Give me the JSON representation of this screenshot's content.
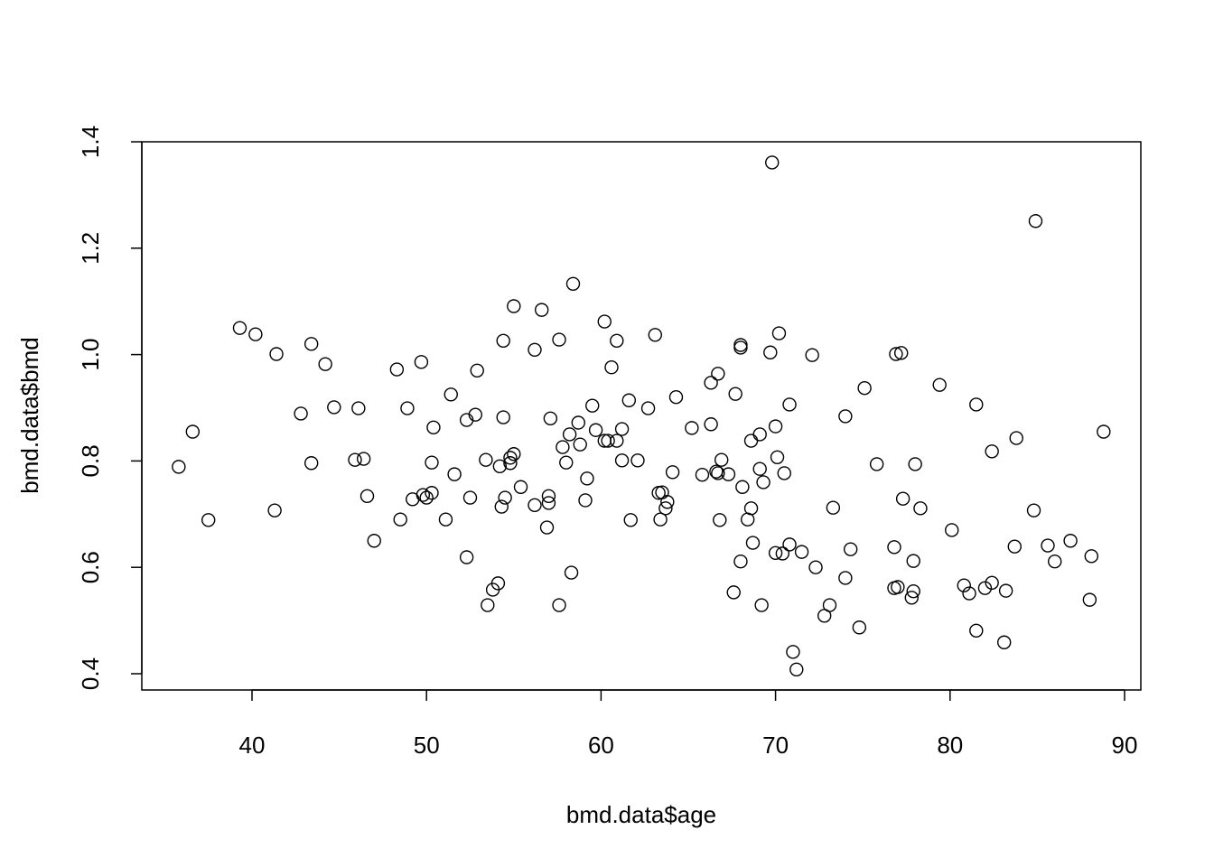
{
  "chart_data": {
    "type": "scatter",
    "title": "",
    "xlabel": "bmd.data$age",
    "ylabel": "bmd.data$bmd",
    "xlim": [
      34,
      91
    ],
    "ylim": [
      0.37,
      1.43
    ],
    "xticks": [
      "40",
      "50",
      "60",
      "70",
      "80",
      "90"
    ],
    "yticks": [
      "0.4",
      "0.6",
      "0.8",
      "1.0",
      "1.2",
      "1.4"
    ],
    "grid": false,
    "marker": "open-circle",
    "color": "#000000",
    "points": [
      [
        35.8,
        0.789
      ],
      [
        36.6,
        0.855
      ],
      [
        37.5,
        0.689
      ],
      [
        39.3,
        1.05
      ],
      [
        40.2,
        1.038
      ],
      [
        41.4,
        1.001
      ],
      [
        41.3,
        0.707
      ],
      [
        42.8,
        0.889
      ],
      [
        43.4,
        1.02
      ],
      [
        43.4,
        0.796
      ],
      [
        44.2,
        0.982
      ],
      [
        44.7,
        0.901
      ],
      [
        45.9,
        0.802
      ],
      [
        46.1,
        0.899
      ],
      [
        46.4,
        0.804
      ],
      [
        46.6,
        0.734
      ],
      [
        47.0,
        0.65
      ],
      [
        48.3,
        0.972
      ],
      [
        48.5,
        0.69
      ],
      [
        48.9,
        0.899
      ],
      [
        49.2,
        0.728
      ],
      [
        49.7,
        0.986
      ],
      [
        49.8,
        0.736
      ],
      [
        50.0,
        0.731
      ],
      [
        50.3,
        0.74
      ],
      [
        50.3,
        0.797
      ],
      [
        50.4,
        0.863
      ],
      [
        51.1,
        0.69
      ],
      [
        51.4,
        0.925
      ],
      [
        51.6,
        0.775
      ],
      [
        52.3,
        0.619
      ],
      [
        52.3,
        0.877
      ],
      [
        52.5,
        0.731
      ],
      [
        52.8,
        0.887
      ],
      [
        52.9,
        0.97
      ],
      [
        53.4,
        0.802
      ],
      [
        53.5,
        0.529
      ],
      [
        53.8,
        0.558
      ],
      [
        54.1,
        0.57
      ],
      [
        54.2,
        0.79
      ],
      [
        54.3,
        0.714
      ],
      [
        54.4,
        1.026
      ],
      [
        54.4,
        0.882
      ],
      [
        54.5,
        0.731
      ],
      [
        54.8,
        0.806
      ],
      [
        54.8,
        0.796
      ],
      [
        55.0,
        1.091
      ],
      [
        55.0,
        0.813
      ],
      [
        55.4,
        0.751
      ],
      [
        56.2,
        0.717
      ],
      [
        56.2,
        1.009
      ],
      [
        56.6,
        1.084
      ],
      [
        56.9,
        0.675
      ],
      [
        57.0,
        0.734
      ],
      [
        57.0,
        0.721
      ],
      [
        57.1,
        0.88
      ],
      [
        57.6,
        1.028
      ],
      [
        57.6,
        0.529
      ],
      [
        57.8,
        0.826
      ],
      [
        58.0,
        0.797
      ],
      [
        58.2,
        0.85
      ],
      [
        58.3,
        0.59
      ],
      [
        58.4,
        1.133
      ],
      [
        58.7,
        0.872
      ],
      [
        58.8,
        0.831
      ],
      [
        59.1,
        0.726
      ],
      [
        59.2,
        0.767
      ],
      [
        59.5,
        0.904
      ],
      [
        59.7,
        0.858
      ],
      [
        60.2,
        1.062
      ],
      [
        60.2,
        0.838
      ],
      [
        60.4,
        0.838
      ],
      [
        60.6,
        0.976
      ],
      [
        60.9,
        1.026
      ],
      [
        60.9,
        0.838
      ],
      [
        61.2,
        0.86
      ],
      [
        61.2,
        0.801
      ],
      [
        61.6,
        0.914
      ],
      [
        61.7,
        0.689
      ],
      [
        62.1,
        0.801
      ],
      [
        62.7,
        0.899
      ],
      [
        63.1,
        1.037
      ],
      [
        63.3,
        0.74
      ],
      [
        63.5,
        0.741
      ],
      [
        63.4,
        0.69
      ],
      [
        63.7,
        0.711
      ],
      [
        63.8,
        0.723
      ],
      [
        64.1,
        0.779
      ],
      [
        64.3,
        0.92
      ],
      [
        65.2,
        0.862
      ],
      [
        65.8,
        0.774
      ],
      [
        66.3,
        0.947
      ],
      [
        66.3,
        0.869
      ],
      [
        66.6,
        0.78
      ],
      [
        66.7,
        0.964
      ],
      [
        66.7,
        0.777
      ],
      [
        66.8,
        0.689
      ],
      [
        66.9,
        0.802
      ],
      [
        67.3,
        0.775
      ],
      [
        67.6,
        0.553
      ],
      [
        67.7,
        0.926
      ],
      [
        68.0,
        1.018
      ],
      [
        68.0,
        1.013
      ],
      [
        68.0,
        0.611
      ],
      [
        68.1,
        0.751
      ],
      [
        68.4,
        0.69
      ],
      [
        68.6,
        0.838
      ],
      [
        68.6,
        0.711
      ],
      [
        68.7,
        0.646
      ],
      [
        69.1,
        0.785
      ],
      [
        69.1,
        0.85
      ],
      [
        69.2,
        0.529
      ],
      [
        69.3,
        0.76
      ],
      [
        69.7,
        1.004
      ],
      [
        69.8,
        1.361
      ],
      [
        70.0,
        0.627
      ],
      [
        70.0,
        0.865
      ],
      [
        70.1,
        0.807
      ],
      [
        70.2,
        1.04
      ],
      [
        70.4,
        0.626
      ],
      [
        70.5,
        0.777
      ],
      [
        70.8,
        0.906
      ],
      [
        70.8,
        0.643
      ],
      [
        71.0,
        0.441
      ],
      [
        71.2,
        0.408
      ],
      [
        71.5,
        0.629
      ],
      [
        72.1,
        0.999
      ],
      [
        72.3,
        0.6
      ],
      [
        72.8,
        0.509
      ],
      [
        73.1,
        0.529
      ],
      [
        73.3,
        0.712
      ],
      [
        74.0,
        0.884
      ],
      [
        74.0,
        0.58
      ],
      [
        74.3,
        0.634
      ],
      [
        74.8,
        0.487
      ],
      [
        75.1,
        0.937
      ],
      [
        75.8,
        0.794
      ],
      [
        76.8,
        0.638
      ],
      [
        76.8,
        0.561
      ],
      [
        76.9,
        1.001
      ],
      [
        77.0,
        0.563
      ],
      [
        77.2,
        1.003
      ],
      [
        77.3,
        0.729
      ],
      [
        77.8,
        0.543
      ],
      [
        77.9,
        0.555
      ],
      [
        77.9,
        0.612
      ],
      [
        78.0,
        0.794
      ],
      [
        78.3,
        0.711
      ],
      [
        79.4,
        0.943
      ],
      [
        80.1,
        0.67
      ],
      [
        80.8,
        0.566
      ],
      [
        81.1,
        0.551
      ],
      [
        81.5,
        0.906
      ],
      [
        81.5,
        0.481
      ],
      [
        82.0,
        0.561
      ],
      [
        82.4,
        0.571
      ],
      [
        82.4,
        0.818
      ],
      [
        83.1,
        0.459
      ],
      [
        83.2,
        0.556
      ],
      [
        83.7,
        0.639
      ],
      [
        83.8,
        0.843
      ],
      [
        84.8,
        0.707
      ],
      [
        84.9,
        1.251
      ],
      [
        85.6,
        0.641
      ],
      [
        86.0,
        0.611
      ],
      [
        86.9,
        0.65
      ],
      [
        88.1,
        0.621
      ],
      [
        88.0,
        0.539
      ],
      [
        88.8,
        0.855
      ]
    ]
  }
}
